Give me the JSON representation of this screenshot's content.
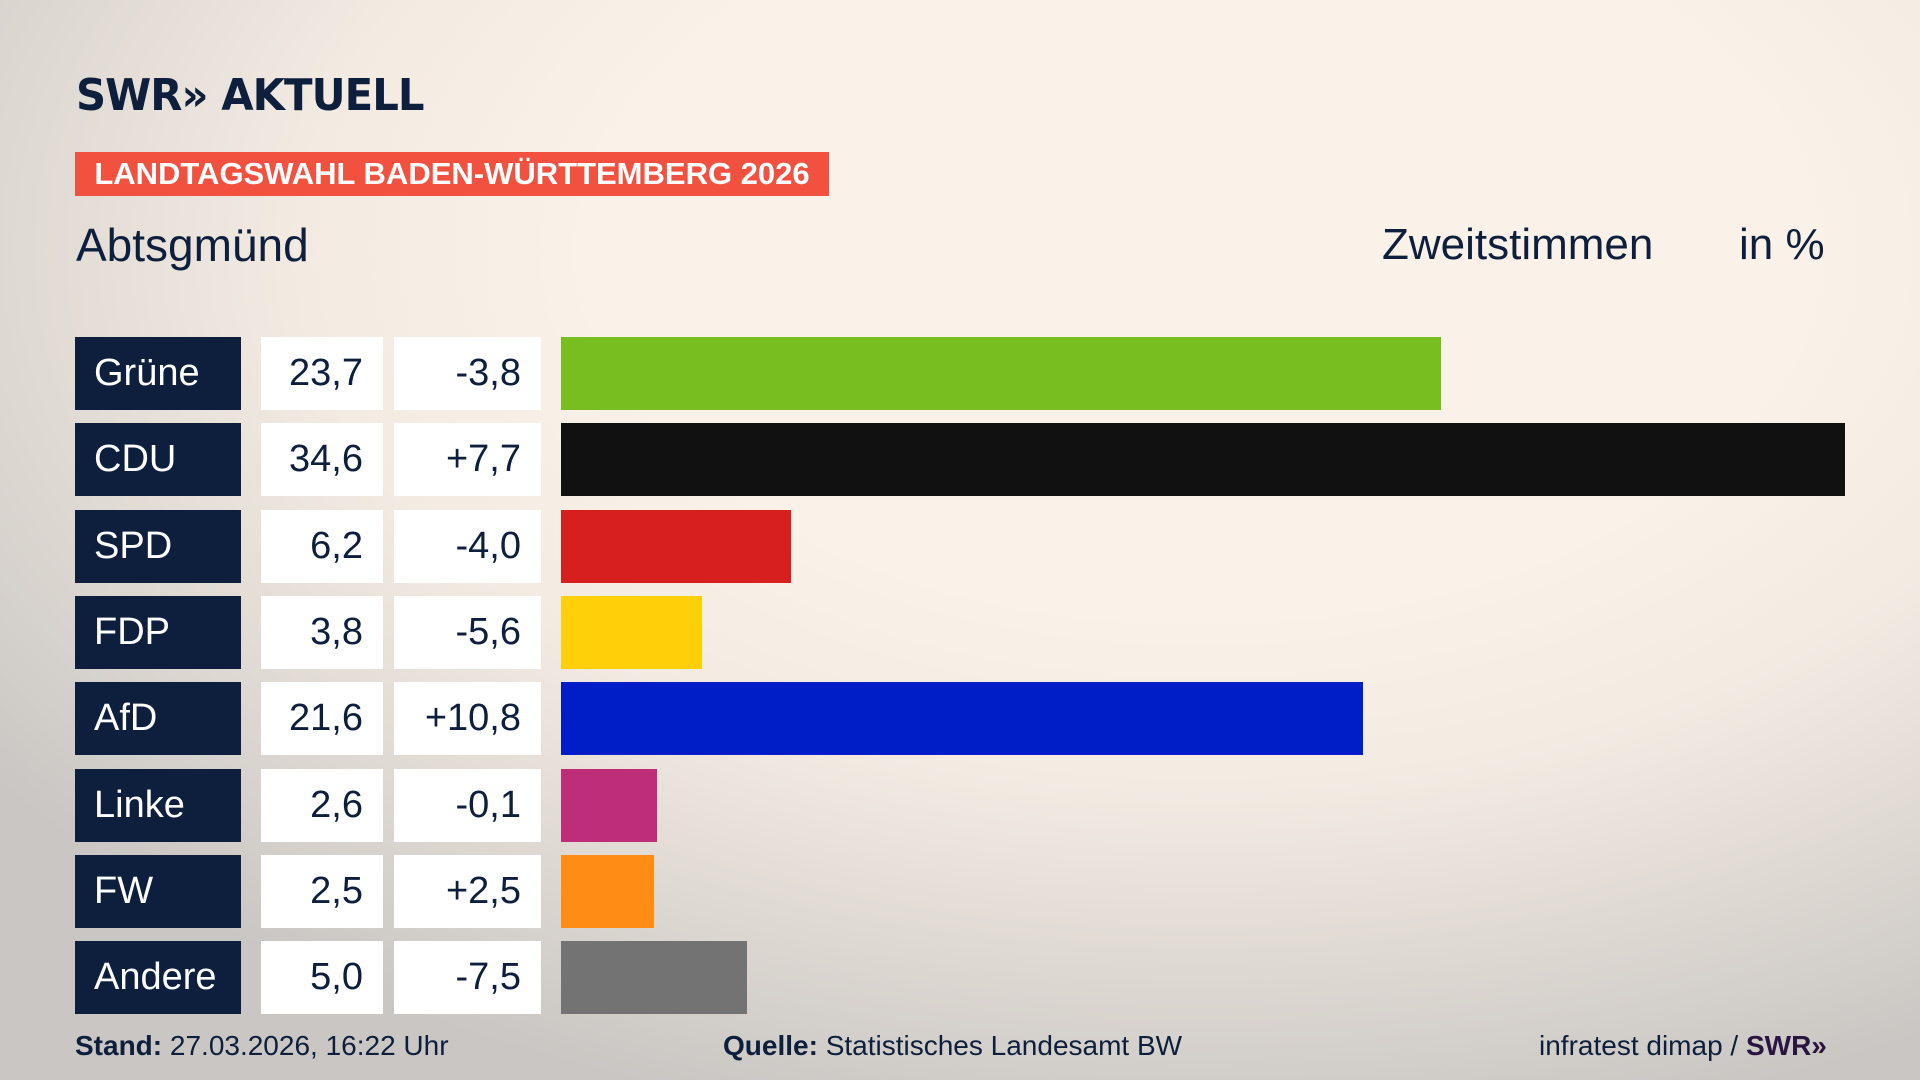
{
  "header": {
    "logo": "SWR» AKTUELL",
    "banner": "LANDTAGSWAHL BADEN-WÜRTTEMBERG 2026",
    "region": "Abtsgmünd",
    "vote_type": "Zweitstimmen",
    "unit": "in %"
  },
  "chart_data": {
    "type": "bar",
    "orientation": "horizontal",
    "categories": [
      "Grüne",
      "CDU",
      "SPD",
      "FDP",
      "AfD",
      "Linke",
      "FW",
      "Andere"
    ],
    "values": [
      23.7,
      34.6,
      6.2,
      3.8,
      21.6,
      2.6,
      2.5,
      5.0
    ],
    "value_labels": [
      "23,7",
      "34,6",
      "6,2",
      "3,8",
      "21,6",
      "2,6",
      "2,5",
      "5,0"
    ],
    "change_labels": [
      "-3,8",
      "+7,7",
      "-4,0",
      "-5,6",
      "+10,8",
      "-0,1",
      "+2,5",
      "-7,5"
    ],
    "changes": [
      -3.8,
      7.7,
      -4.0,
      -5.6,
      10.8,
      -0.1,
      2.5,
      -7.5
    ],
    "colors": [
      "#78be1e",
      "#111111",
      "#d7201e",
      "#ffcf0a",
      "#001ec8",
      "#be2d78",
      "#ff8c14",
      "#737373"
    ],
    "title": "Zweitstimmen",
    "ylabel": "in %"
  },
  "footer": {
    "stand_label": "Stand:",
    "stand_value": "27.03.2026, 16:22 Uhr",
    "source_label": "Quelle:",
    "source_value": "Statistisches Landesamt BW",
    "credit": "infratest dimap / ",
    "credit_logo": "SWR»"
  }
}
